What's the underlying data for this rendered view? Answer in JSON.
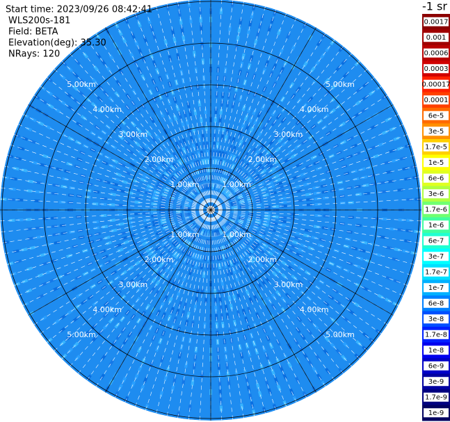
{
  "header": {
    "start_time": "Start time: 2023/09/26 08:42:41",
    "instrument": "WLS200s-181",
    "field": "Field: BETA",
    "elevation": "Elevation(deg): 35.30",
    "nrays": "NRays: 120"
  },
  "range_rings": [
    "1.00km",
    "2.00km",
    "3.00km",
    "4.00km",
    "5.00km"
  ],
  "colorbar": {
    "unit": "-1 sr",
    "labels": [
      "0.0017",
      "0.001",
      "0.0006",
      "0.0003",
      "0.00017",
      "0.0001",
      "6e-5",
      "3e-5",
      "1.7e-5",
      "1e-5",
      "6e-6",
      "3e-6",
      "1.7e-6",
      "1e-6",
      "6e-7",
      "3e-7",
      "1.7e-7",
      "1e-7",
      "6e-8",
      "3e-8",
      "1.7e-8",
      "1e-8",
      "6e-9",
      "3e-9",
      "1.7e-9",
      "1e-9"
    ],
    "colors": [
      "#8b0000",
      "#a00000",
      "#b80000",
      "#d00000",
      "#ff2000",
      "#ff4000",
      "#ff6a00",
      "#ff9000",
      "#ffd000",
      "#ffff00",
      "#e0ff20",
      "#b0ff40",
      "#70ff70",
      "#40ffa0",
      "#20ffd0",
      "#00ffff",
      "#00e0ff",
      "#00b0ff",
      "#0080ff",
      "#0050ff",
      "#0020ff",
      "#0000ee",
      "#0000c8",
      "#0000a0",
      "#000080",
      "#000060"
    ]
  }
}
